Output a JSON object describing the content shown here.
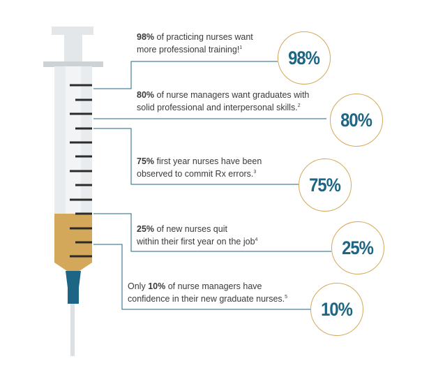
{
  "stats": [
    {
      "value": "98%",
      "bold": "98%",
      "text": " of practicing nurses want more professional training!",
      "line2_break_after": "want",
      "ref": "1"
    },
    {
      "value": "80%",
      "bold": "80%",
      "text": " of nurse managers want graduates with solid professional and interpersonal skills.",
      "ref": "2"
    },
    {
      "value": "75%",
      "bold": "75%",
      "text": " first year nurses have been observed to commit Rx errors.",
      "ref": "3"
    },
    {
      "value": "25%",
      "bold": "25%",
      "text": " of new nurses quit within their first year on the job",
      "ref": "4"
    },
    {
      "value": "10%",
      "prefix": "Only ",
      "bold": "10%",
      "text": " of nurse managers have confidence in their new graduate nurses.",
      "ref": "5"
    }
  ],
  "lines": [
    {
      "prefix": "",
      "bold": "98%",
      "l1": " of practicing nurses want",
      "l2": "more professional training!"
    },
    {
      "prefix": "",
      "bold": "80%",
      "l1": " of nurse managers want graduates with",
      "l2": "solid professional and interpersonal skills."
    },
    {
      "prefix": "",
      "bold": "75%",
      "l1": " first year nurses have been",
      "l2": "observed to commit Rx errors."
    },
    {
      "prefix": "",
      "bold": "25%",
      "l1": " of new nurses quit",
      "l2": "within their first year on the job"
    },
    {
      "prefix": "Only ",
      "bold": "10%",
      "l1": " of nurse managers have",
      "l2": "confidence in their new graduate nurses."
    }
  ],
  "colors": {
    "accent_blue": "#1c6585",
    "fill_gold": "#d4a85a",
    "circle_border": "#d4a85a",
    "leader_line": "#1c6585",
    "barrel": "#e8ebed",
    "needle": "#dde1e4"
  }
}
